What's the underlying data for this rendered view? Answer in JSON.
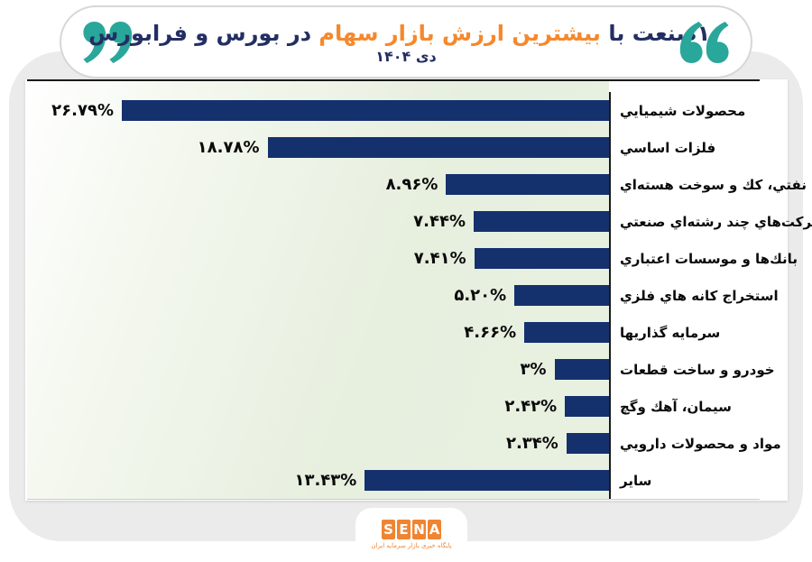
{
  "title": {
    "part1_navy": "۱۰صنعت با",
    "part2_orange": "بیشترین ارزش بازار سهام",
    "part3_navy": "در بورس و فرابورس",
    "subtitle": "دی ۱۴۰۴"
  },
  "colors": {
    "bar_navy": "#14316e",
    "title_navy": "#232f63",
    "title_orange": "#f6882c",
    "quote_teal": "#29a79a",
    "sena_orange": "#ef8532",
    "card_gray": "#ebebeb",
    "plot_green": "#e8f0e1"
  },
  "chart_data": {
    "type": "bar",
    "orientation": "horizontal-rtl",
    "title": "۱۰صنعت با بیشترین ارزش بازار سهام در بورس و فرابورس",
    "subtitle": "دی ۱۴۰۴",
    "categories": [
      "محصولات شيميايي",
      "فلزات اساسي",
      "فراورده‌هاي نفتي، كك و سوخت هسته‌اي",
      "شركت‌هاي چند رشته‌اي صنعتي",
      "بانك‌ها و موسسات اعتباري",
      "استخراج كانه هاي فلزي",
      "سرمايه گذاريها",
      "خودرو و ساخت قطعات",
      "سيمان، آهك وگچ",
      "مواد و محصولات دارويي",
      "ساير"
    ],
    "values": [
      26.79,
      18.78,
      8.96,
      7.44,
      7.41,
      5.2,
      4.66,
      3,
      2.42,
      2.34,
      13.43
    ],
    "value_labels": [
      "۲۶.۷۹%",
      "۱۸.۷۸%",
      "۸.۹۶%",
      "۷.۴۴%",
      "۷.۴۱%",
      "۵.۲۰%",
      "۴.۶۶%",
      "۳%",
      "۲.۴۲%",
      "۲.۳۴%",
      "۱۳.۴۳%"
    ],
    "unit": "%",
    "xlim": [
      0,
      27
    ],
    "grid": false,
    "legend": false
  },
  "footer": {
    "logo_letters": [
      "S",
      "E",
      "N",
      "A"
    ],
    "tagline": "پایگاه خبری بازار سرمایه ایران"
  }
}
